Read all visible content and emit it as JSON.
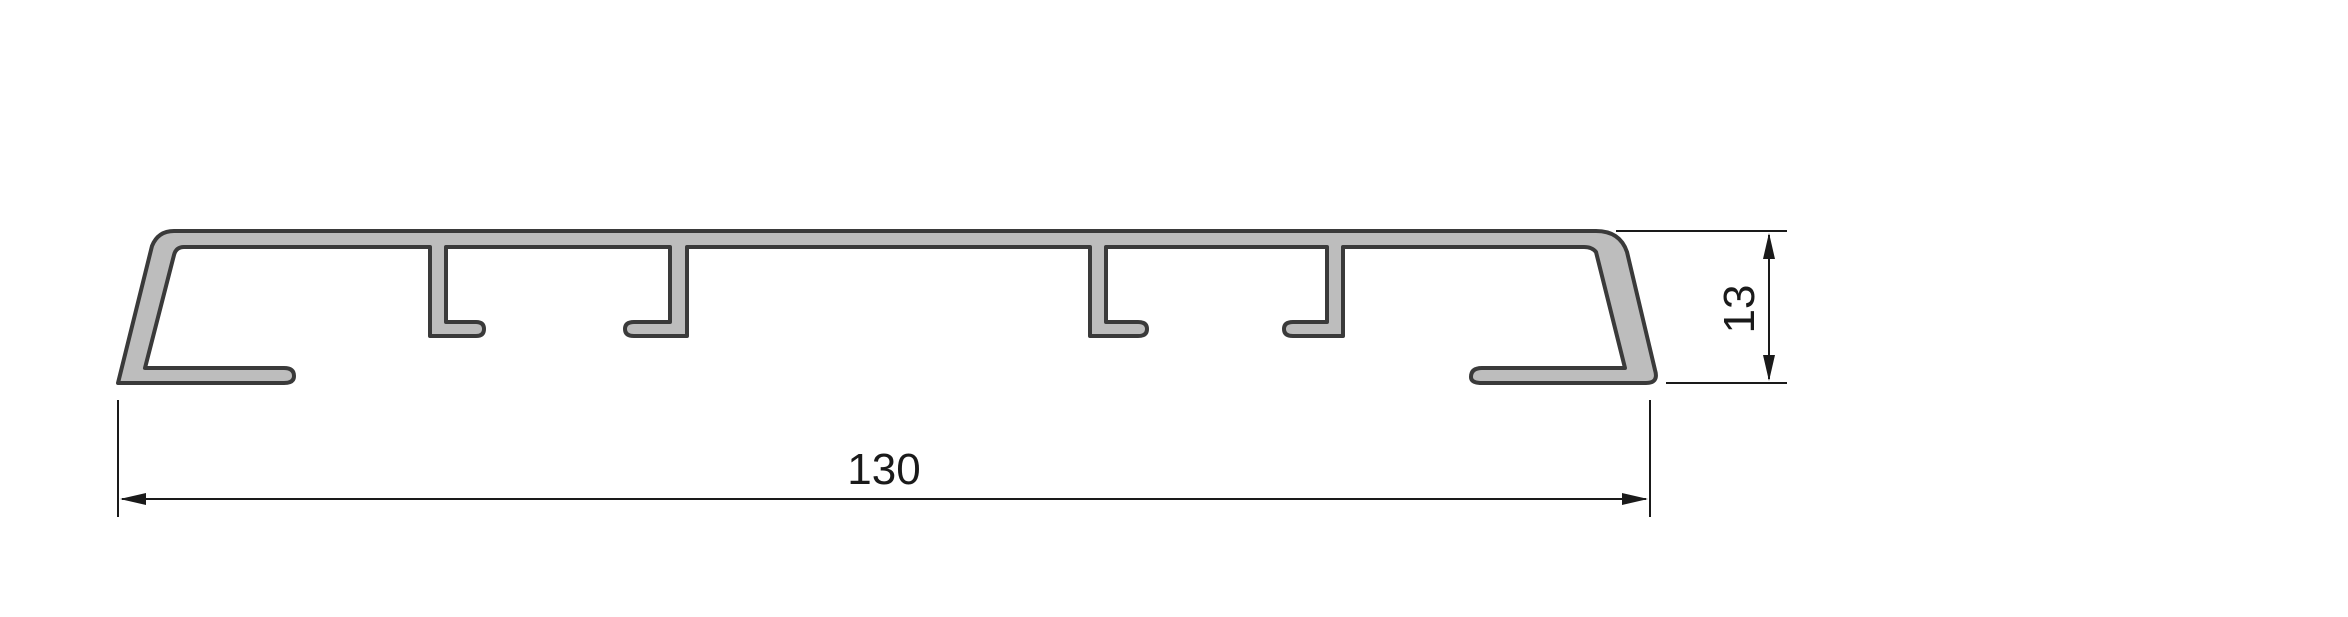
{
  "diagram": {
    "type": "profile cross-section",
    "profile_fill": "#bdbdbd",
    "profile_stroke": "#3a3a3a",
    "dimension_color": "#1a1a1a"
  },
  "dimensions": {
    "width_value": "130",
    "height_value": "13"
  }
}
